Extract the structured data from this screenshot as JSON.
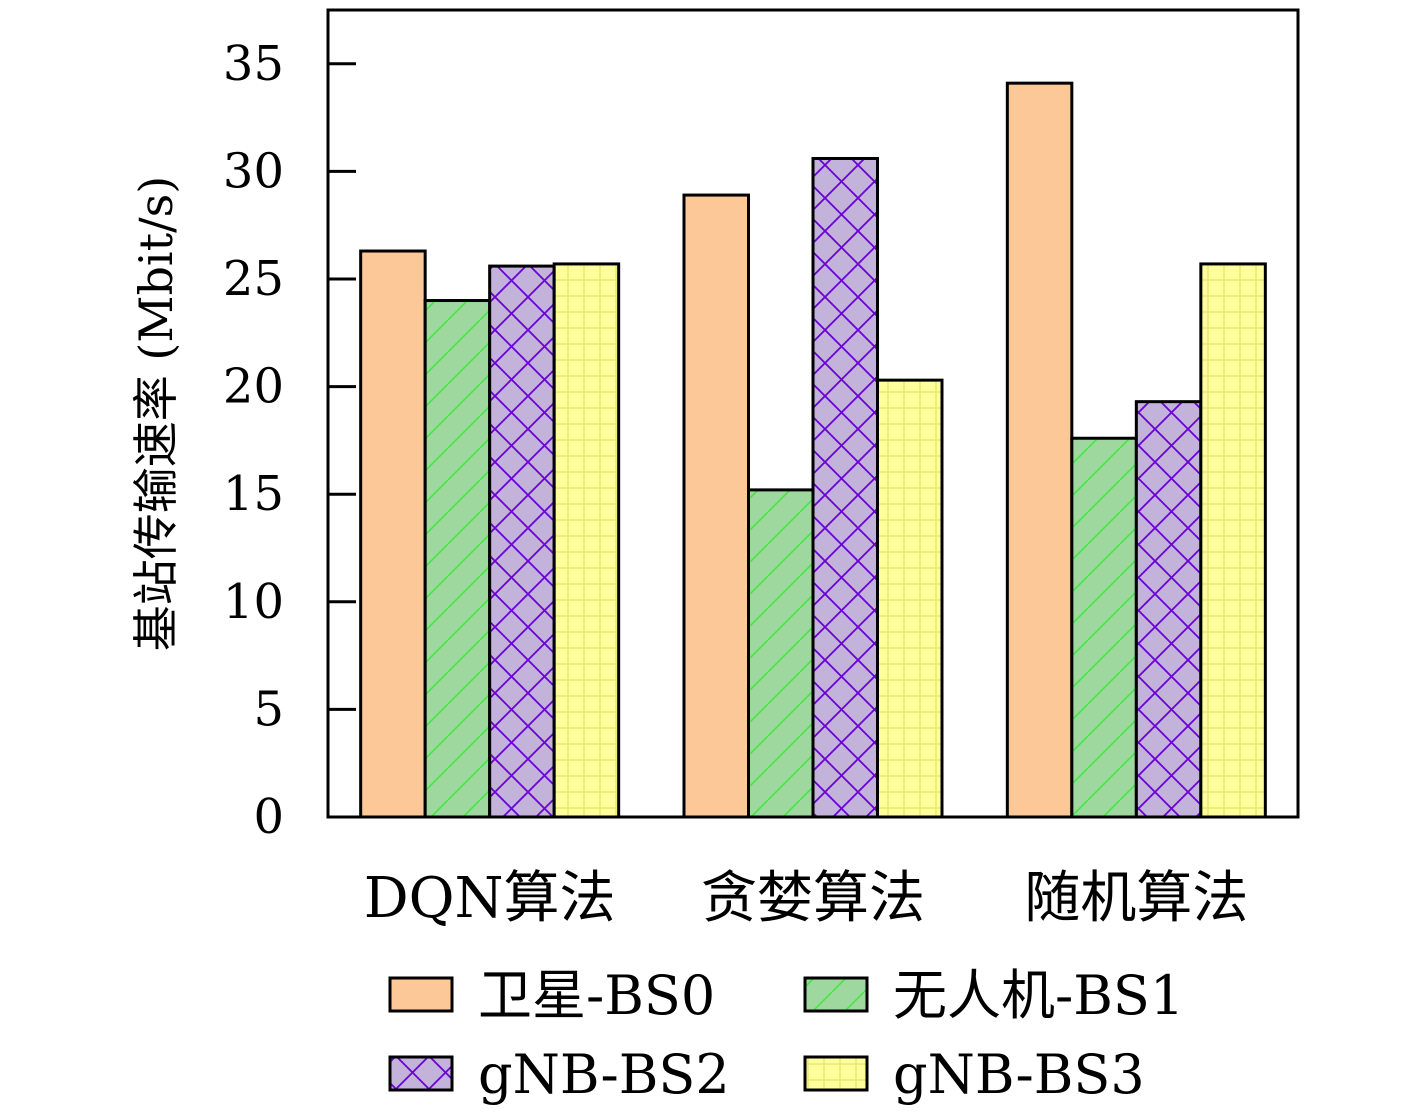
{
  "chart_data": {
    "type": "bar",
    "categories": [
      "DQN算法",
      "贪婪算法",
      "随机算法"
    ],
    "series": [
      {
        "name": "卫星-BS0",
        "values": [
          26.3,
          28.9,
          34.1
        ]
      },
      {
        "name": "无人机-BS1",
        "values": [
          24.0,
          15.2,
          17.6
        ]
      },
      {
        "name": "gNB-BS2",
        "values": [
          25.6,
          30.6,
          19.3
        ]
      },
      {
        "name": "gNB-BS3",
        "values": [
          25.7,
          20.3,
          25.7
        ]
      }
    ],
    "ylabel": "基站传输速率 (Mbit/s)",
    "ylim": [
      0,
      37.5
    ],
    "yticks": [
      0,
      5,
      10,
      15,
      20,
      25,
      30,
      35
    ],
    "grid": false,
    "legend": "bottom",
    "colors": {
      "bs0_fill": "#fcc898",
      "bs1_fill": "#9fd89f",
      "bs1_hatch": "#33ee33",
      "bs2_fill": "#c3b2d9",
      "bs2_hatch": "#6a00d8",
      "bs3_fill": "#feff9c",
      "bs3_hatch": "#e8e870"
    }
  }
}
